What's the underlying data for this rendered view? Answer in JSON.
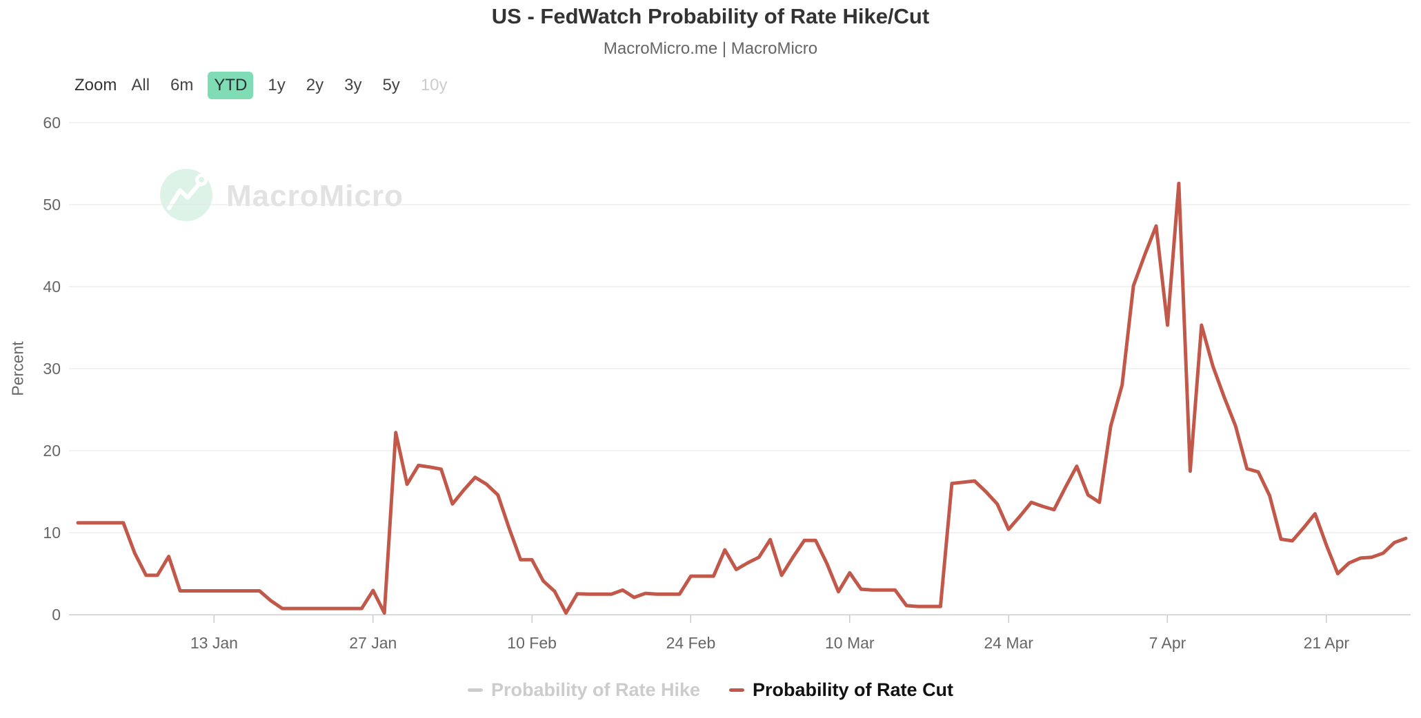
{
  "header": {
    "title": "US - FedWatch Probability of Rate Hike/Cut",
    "subtitle": "MacroMicro.me | MacroMicro"
  },
  "toolbar": {
    "zoom_label": "Zoom",
    "ranges": [
      {
        "label": "All",
        "state": "normal"
      },
      {
        "label": "6m",
        "state": "normal"
      },
      {
        "label": "YTD",
        "state": "selected"
      },
      {
        "label": "1y",
        "state": "normal"
      },
      {
        "label": "2y",
        "state": "normal"
      },
      {
        "label": "3y",
        "state": "normal"
      },
      {
        "label": "5y",
        "state": "normal"
      },
      {
        "label": "10y",
        "state": "disabled"
      }
    ],
    "selected_color": "#7fdcb5"
  },
  "watermark": {
    "text": "MacroMicro",
    "circle_color": "#ddf3e8",
    "text_color": "#e2e2e2"
  },
  "axes": {
    "y_title": "Percent",
    "y_ticks": [
      0,
      10,
      20,
      30,
      40,
      50,
      60
    ],
    "x_ticks": [
      {
        "label": "13 Jan",
        "day": 12
      },
      {
        "label": "27 Jan",
        "day": 26
      },
      {
        "label": "10 Feb",
        "day": 40
      },
      {
        "label": "24 Feb",
        "day": 54
      },
      {
        "label": "10 Mar",
        "day": 68
      },
      {
        "label": "24 Mar",
        "day": 82
      },
      {
        "label": "7 Apr",
        "day": 96
      },
      {
        "label": "21 Apr",
        "day": 110
      }
    ],
    "grid_color": "#e6e6e6",
    "axis_line_color": "#cccccc",
    "label_color": "#666666"
  },
  "legend": {
    "items": [
      {
        "label": "Probability of Rate Hike",
        "dash_color": "#cccccc",
        "text_color": "#cccccc",
        "active": false
      },
      {
        "label": "Probability of Rate Cut",
        "dash_color": "#c2584a",
        "text_color": "#111111",
        "active": true
      }
    ]
  },
  "chart_data": {
    "type": "line",
    "title": "US - FedWatch Probability of Rate Hike/Cut",
    "subtitle": "MacroMicro.me | MacroMicro",
    "ylabel": "Percent",
    "ylim": [
      0,
      60
    ],
    "grid": true,
    "legend_position": "bottom",
    "x_description": "daily values, day 0 = 1 Jan through day 117 = 28 Apr",
    "x_tick_days": [
      12,
      26,
      40,
      54,
      68,
      82,
      96,
      110
    ],
    "series": [
      {
        "name": "Probability of Rate Hike",
        "color": "#cccccc",
        "visible": false,
        "values": []
      },
      {
        "name": "Probability of Rate Cut",
        "color": "#c2584a",
        "visible": true,
        "values": [
          11.2,
          11.2,
          11.2,
          11.2,
          11.2,
          7.5,
          4.8,
          4.8,
          7.1,
          2.9,
          2.9,
          2.9,
          2.9,
          2.9,
          2.9,
          2.9,
          2.9,
          1.7,
          0.75,
          0.75,
          0.75,
          0.75,
          0.75,
          0.75,
          0.75,
          0.75,
          2.95,
          0.2,
          22.2,
          15.9,
          18.2,
          18.0,
          17.75,
          13.5,
          15.2,
          16.75,
          15.9,
          14.6,
          10.5,
          6.7,
          6.7,
          4.1,
          2.85,
          0.2,
          2.55,
          2.5,
          2.5,
          2.5,
          3.0,
          2.1,
          2.6,
          2.5,
          2.5,
          2.5,
          4.7,
          4.7,
          4.7,
          7.9,
          5.5,
          6.3,
          7.0,
          9.15,
          4.8,
          7.0,
          9.05,
          9.05,
          6.2,
          2.8,
          5.1,
          3.1,
          3.0,
          3.0,
          3.0,
          1.1,
          1.0,
          1.0,
          1.0,
          16.0,
          16.15,
          16.3,
          15.0,
          13.5,
          10.4,
          12.0,
          13.7,
          13.2,
          12.8,
          15.5,
          18.1,
          14.6,
          13.7,
          23.0,
          28.0,
          40.1,
          43.9,
          47.4,
          35.3,
          52.6,
          17.5,
          35.3,
          30.3,
          26.5,
          23.0,
          17.8,
          17.4,
          14.5,
          9.2,
          9.0,
          10.6,
          12.3,
          8.5,
          5.0,
          6.3,
          6.9,
          7.0,
          7.5,
          8.8,
          9.3
        ]
      }
    ]
  }
}
